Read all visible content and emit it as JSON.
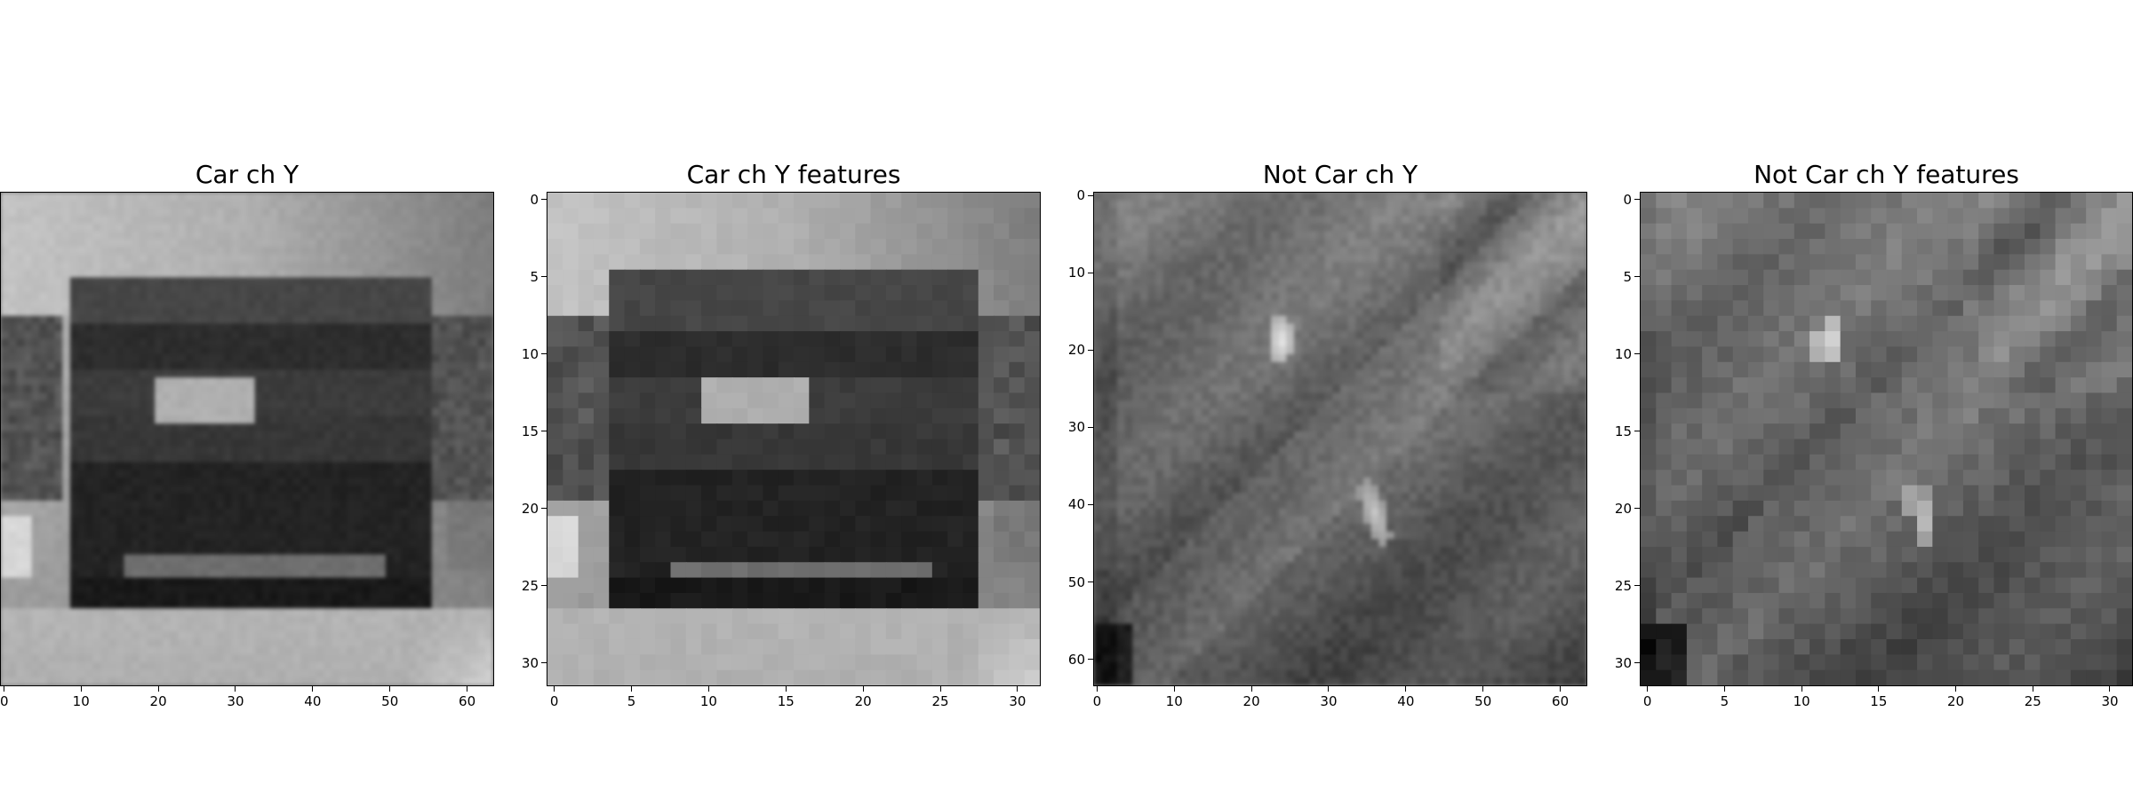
{
  "panels": [
    {
      "title": "Car ch Y",
      "scene": "car-blurred",
      "x_ticks": [
        "0",
        "10",
        "20",
        "30",
        "40",
        "50",
        "60"
      ],
      "x_tick_values": [
        0,
        10,
        20,
        30,
        40,
        50,
        60
      ],
      "y_ticks": [],
      "y_tick_values": [],
      "extent": 64
    },
    {
      "title": "Car ch Y features",
      "scene": "car-pixelated",
      "x_ticks": [
        "0",
        "5",
        "10",
        "15",
        "20",
        "25",
        "30"
      ],
      "x_tick_values": [
        0,
        5,
        10,
        15,
        20,
        25,
        30
      ],
      "y_ticks": [
        "0",
        "5",
        "10",
        "15",
        "20",
        "25",
        "30"
      ],
      "y_tick_values": [
        0,
        5,
        10,
        15,
        20,
        25,
        30
      ],
      "extent": 32
    },
    {
      "title": "Not Car ch Y",
      "scene": "road-blurred",
      "x_ticks": [
        "0",
        "10",
        "20",
        "30",
        "40",
        "50",
        "60"
      ],
      "x_tick_values": [
        0,
        10,
        20,
        30,
        40,
        50,
        60
      ],
      "y_ticks": [
        "0",
        "10",
        "20",
        "30",
        "40",
        "50",
        "60"
      ],
      "y_tick_values": [
        0,
        10,
        20,
        30,
        40,
        50,
        60
      ],
      "extent": 64
    },
    {
      "title": "Not Car ch Y features",
      "scene": "road-pixelated",
      "x_ticks": [
        "0",
        "5",
        "10",
        "15",
        "20",
        "25",
        "30"
      ],
      "x_tick_values": [
        0,
        5,
        10,
        15,
        20,
        25,
        30
      ],
      "y_ticks": [
        "0",
        "5",
        "10",
        "15",
        "20",
        "25",
        "30"
      ],
      "y_tick_values": [
        0,
        5,
        10,
        15,
        20,
        25,
        30
      ],
      "extent": 32
    }
  ]
}
